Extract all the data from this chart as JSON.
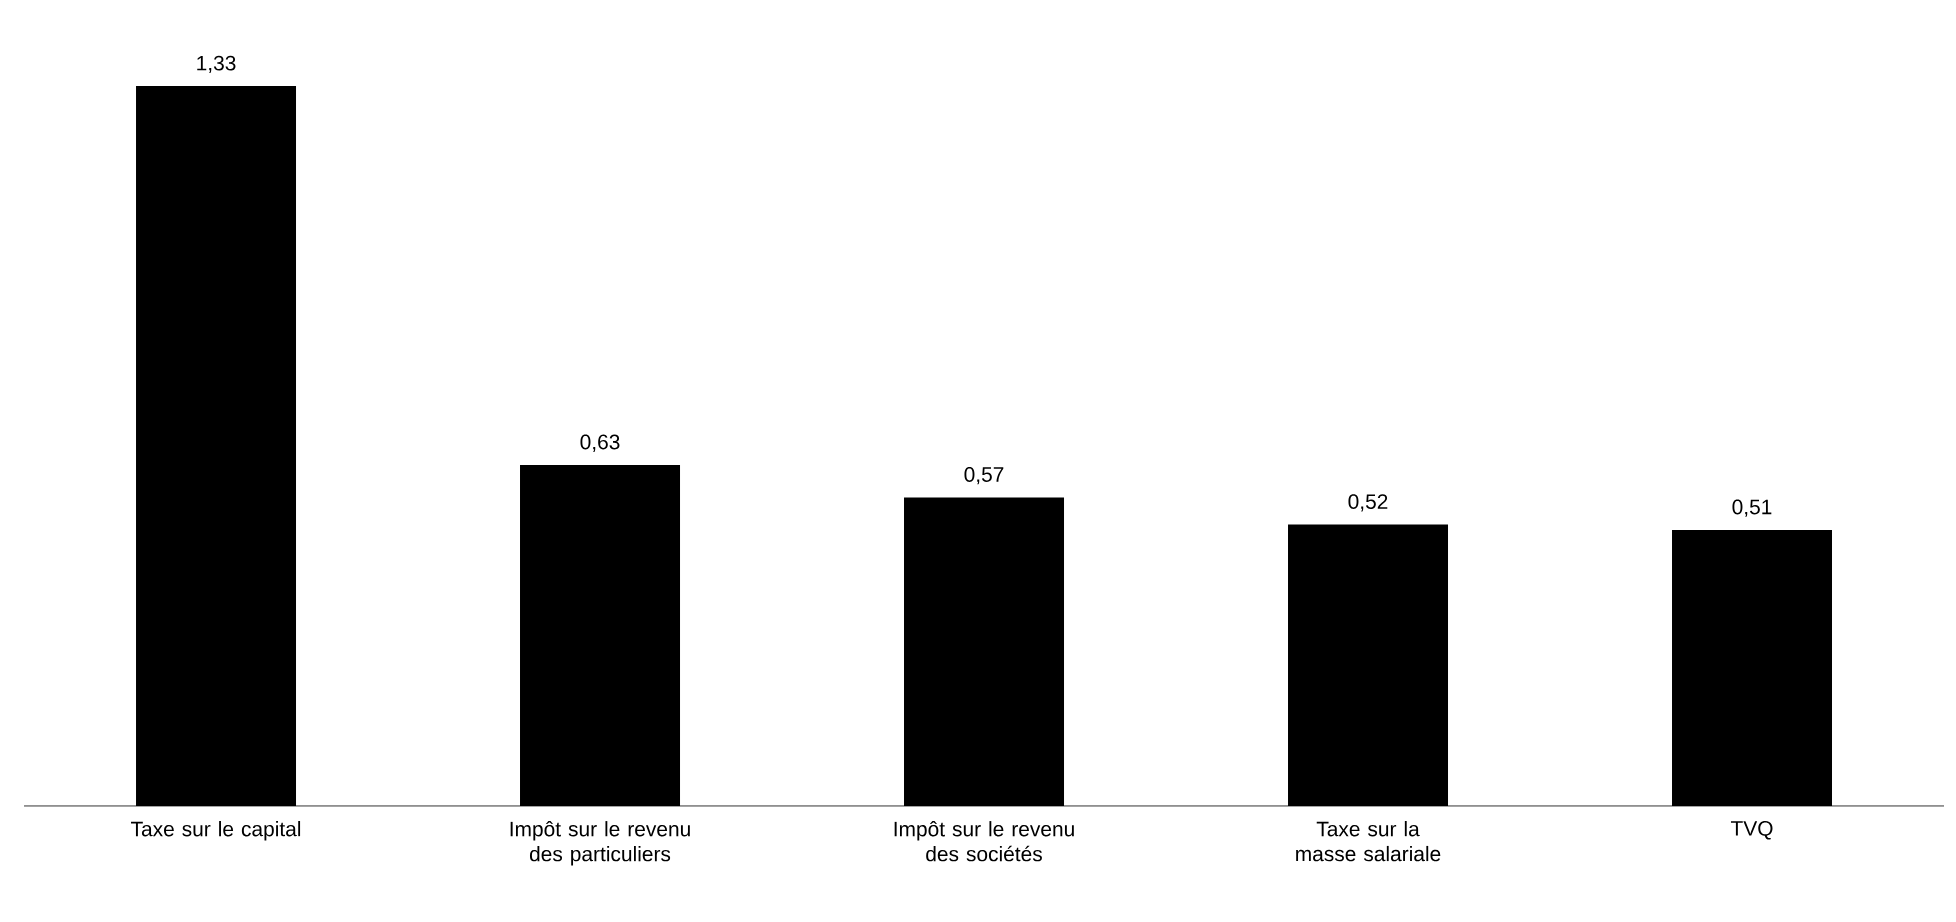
{
  "chart_data": {
    "type": "bar",
    "categories": [
      "Taxe sur le capital",
      "Impôt sur le revenu des particuliers",
      "Impôt sur le revenu des sociétés",
      "Taxe sur la masse salariale",
      "TVQ"
    ],
    "values": [
      1.33,
      0.63,
      0.57,
      0.52,
      0.51
    ],
    "color": "#000000",
    "value_labels": [
      "1,33",
      "0,63",
      "0,57",
      "0,52",
      "0,51"
    ]
  }
}
